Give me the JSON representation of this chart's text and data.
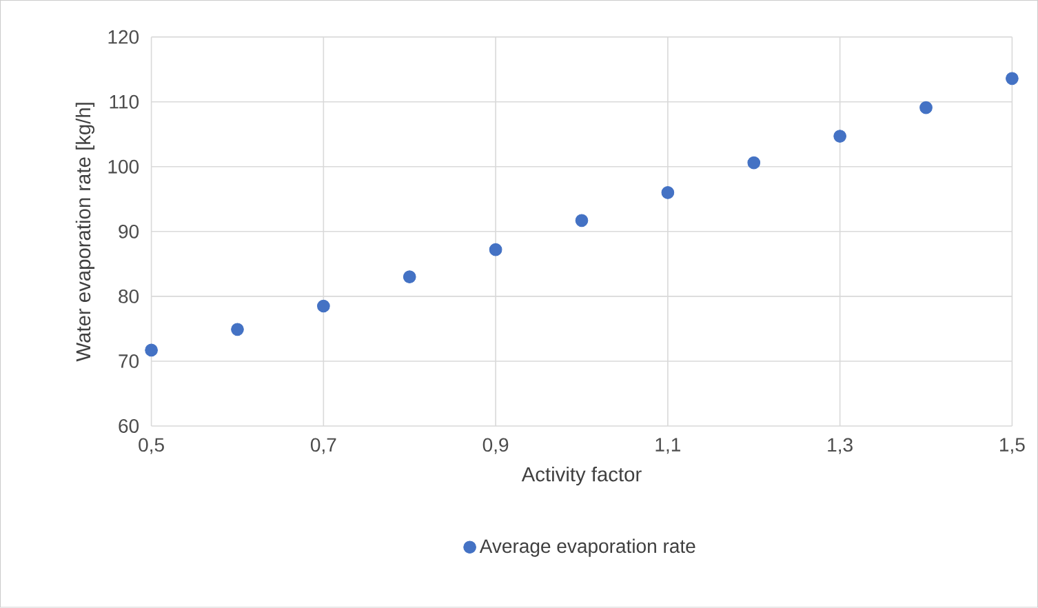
{
  "chart_data": {
    "type": "scatter",
    "xlabel": "Activity factor",
    "ylabel": "Water evaporation rate  [kg/h]",
    "x": [
      0.5,
      0.6,
      0.7,
      0.8,
      0.9,
      1.0,
      1.1,
      1.2,
      1.3,
      1.4,
      1.5
    ],
    "series": [
      {
        "name": "Average evaporation rate",
        "color": "#4472c4",
        "values": [
          71.7,
          74.9,
          78.5,
          83.0,
          87.2,
          91.7,
          96.0,
          100.6,
          104.7,
          109.1,
          113.6
        ]
      }
    ],
    "xlim": [
      0.5,
      1.5
    ],
    "xticks": [
      {
        "value": 0.5,
        "label": "0,5"
      },
      {
        "value": 0.7,
        "label": "0,7"
      },
      {
        "value": 0.9,
        "label": "0,9"
      },
      {
        "value": 1.1,
        "label": "1,1"
      },
      {
        "value": 1.3,
        "label": "1,3"
      },
      {
        "value": 1.5,
        "label": "1,5"
      }
    ],
    "ylim": [
      60,
      120
    ],
    "yticks": [
      60,
      70,
      80,
      90,
      100,
      110,
      120
    ],
    "grid": true,
    "legend": "bottom",
    "marker": "circle"
  }
}
